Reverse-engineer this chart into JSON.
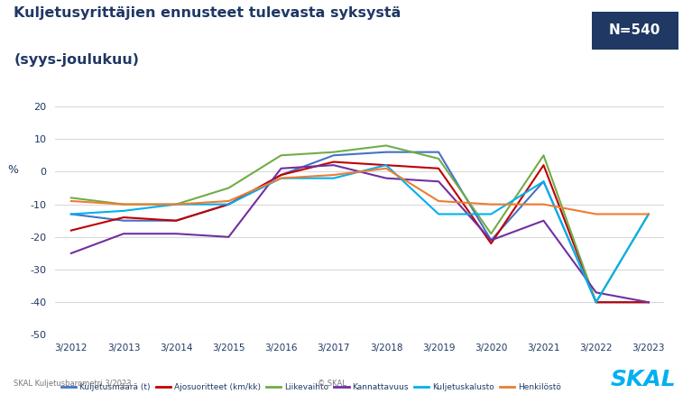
{
  "title_line1": "Kuljetusyrittäjien ennusteet tulevasta syksystä",
  "title_line2": "(syys-joulukuu)",
  "n_label": "N=540",
  "ylabel": "%",
  "ylim": [
    -50,
    20
  ],
  "yticks": [
    -50,
    -40,
    -30,
    -20,
    -10,
    0,
    10,
    20
  ],
  "background_color": "#ffffff",
  "title_color": "#1F3864",
  "x_labels": [
    "3/2012",
    "3/2013",
    "3/2014",
    "3/2015",
    "3/2016",
    "3/2017",
    "3/2018",
    "3/2019",
    "3/2020",
    "3/2021",
    "3/2022",
    "3/2023"
  ],
  "series": [
    {
      "name": "Kuljetusmäärä (t)",
      "color": "#4472C4",
      "values": [
        -13,
        -15,
        -15,
        -10,
        -1,
        5,
        6,
        6,
        -21,
        -3,
        -40,
        -40
      ]
    },
    {
      "name": "Ajosuoritteet (km/kk)",
      "color": "#C00000",
      "values": [
        -18,
        -14,
        -15,
        -10,
        -1,
        3,
        2,
        1,
        -22,
        2,
        -40,
        -40
      ]
    },
    {
      "name": "Liikevaihto",
      "color": "#70AD47",
      "values": [
        -8,
        -10,
        -10,
        -5,
        5,
        6,
        8,
        4,
        -19,
        5,
        -40,
        -13
      ]
    },
    {
      "name": "Kannattavuus",
      "color": "#7030A0",
      "values": [
        -25,
        -19,
        -19,
        -20,
        1,
        2,
        -2,
        -3,
        -21,
        -15,
        -37,
        -40
      ]
    },
    {
      "name": "Kuljetuskalusto",
      "color": "#00B0F0",
      "values": [
        -13,
        -12,
        -10,
        -10,
        -2,
        -2,
        2,
        -13,
        -13,
        -3,
        -40,
        -13
      ]
    },
    {
      "name": "Henkilöstö",
      "color": "#ED7D31",
      "values": [
        -9,
        -10,
        -10,
        -9,
        -2,
        -1,
        1,
        -9,
        -10,
        -10,
        -13,
        -13
      ]
    }
  ],
  "footer_left": "SKAL Kuljetusbarometri 3/2023",
  "footer_center": "© SKAL"
}
